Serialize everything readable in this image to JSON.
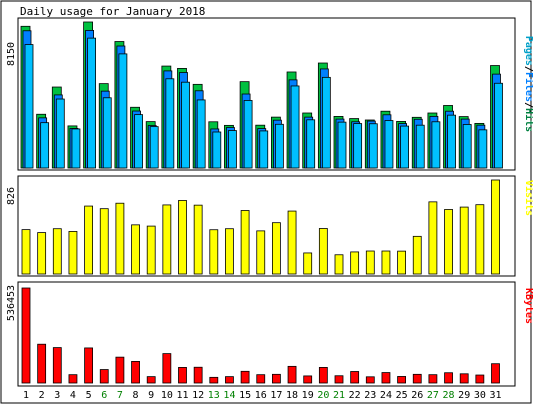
{
  "chart_data": [
    {
      "type": "bar",
      "panel": "hits-files-pages",
      "title": "Daily usage for January 2018",
      "y_tick_label": "8150",
      "right_label_parts": [
        {
          "text": "Pages",
          "color": "#00a0c8"
        },
        {
          "text": "/",
          "color": "#000000"
        },
        {
          "text": "Files",
          "color": "#0080ff"
        },
        {
          "text": "/",
          "color": "#000000"
        },
        {
          "text": "Hits",
          "color": "#008040"
        }
      ],
      "x": [
        1,
        2,
        3,
        4,
        5,
        6,
        7,
        8,
        9,
        10,
        11,
        12,
        13,
        14,
        15,
        16,
        17,
        18,
        19,
        20,
        21,
        22,
        23,
        24,
        25,
        26,
        27,
        28,
        29,
        30,
        31
      ],
      "x_label_colors": [
        "#000000",
        "#000000",
        "#000000",
        "#000000",
        "#000000",
        "#008000",
        "#008000",
        "#000000",
        "#000000",
        "#000000",
        "#000000",
        "#000000",
        "#008000",
        "#008000",
        "#000000",
        "#000000",
        "#000000",
        "#000000",
        "#000000",
        "#008000",
        "#008000",
        "#000000",
        "#000000",
        "#000000",
        "#000000",
        "#000000",
        "#008000",
        "#008000",
        "#000000",
        "#000000",
        "#000000"
      ],
      "ylim": [
        0,
        8150
      ],
      "series": [
        {
          "name": "Hits",
          "color": "#00c040",
          "values": [
            7910,
            3000,
            4520,
            2350,
            8150,
            4710,
            7060,
            3390,
            2590,
            5690,
            5560,
            4670,
            2580,
            2380,
            4820,
            2390,
            2840,
            5360,
            3070,
            5860,
            2880,
            2760,
            2680,
            3170,
            2600,
            2830,
            3070,
            3490,
            2870,
            2490,
            5720
          ]
        },
        {
          "name": "Files",
          "color": "#0080ff",
          "values": [
            7660,
            2800,
            4080,
            2210,
            7680,
            4290,
            6810,
            3180,
            2370,
            5420,
            5330,
            4310,
            2180,
            2260,
            4130,
            2200,
            2670,
            4920,
            2840,
            5530,
            2730,
            2580,
            2620,
            2970,
            2480,
            2720,
            2880,
            3170,
            2730,
            2390,
            5240
          ]
        },
        {
          "name": "Pages",
          "color": "#00c0ff",
          "values": [
            6890,
            2530,
            3850,
            2180,
            7250,
            3920,
            6370,
            2980,
            2310,
            4980,
            4790,
            3800,
            2010,
            2090,
            3770,
            2070,
            2440,
            4580,
            2690,
            5060,
            2560,
            2480,
            2470,
            2650,
            2340,
            2390,
            2580,
            2950,
            2430,
            2130,
            4730
          ]
        }
      ]
    },
    {
      "type": "bar",
      "panel": "visits",
      "y_tick_label": "826",
      "right_label": "Visits",
      "ylim": [
        0,
        826
      ],
      "series": [
        {
          "name": "Visits",
          "color": "#ffff00",
          "values": [
            390,
            364,
            398,
            374,
            597,
            574,
            622,
            432,
            421,
            607,
            646,
            605,
            389,
            398,
            558,
            379,
            451,
            553,
            185,
            400,
            169,
            194,
            202,
            202,
            201,
            331,
            634,
            567,
            588,
            609,
            826
          ]
        }
      ]
    },
    {
      "type": "bar",
      "panel": "kbytes",
      "y_tick_label": "536453",
      "right_label": "KBytes",
      "ylim": [
        0,
        536453
      ],
      "series": [
        {
          "name": "KBytes",
          "color": "#ff0000",
          "values": [
            536453,
            219000,
            200000,
            47000,
            198000,
            76000,
            146000,
            122000,
            36000,
            166000,
            88000,
            89000,
            32000,
            36000,
            66000,
            47000,
            49000,
            94000,
            40000,
            88000,
            41000,
            65000,
            35000,
            59000,
            37000,
            49000,
            47000,
            58000,
            52000,
            45000,
            109000
          ]
        }
      ]
    }
  ]
}
